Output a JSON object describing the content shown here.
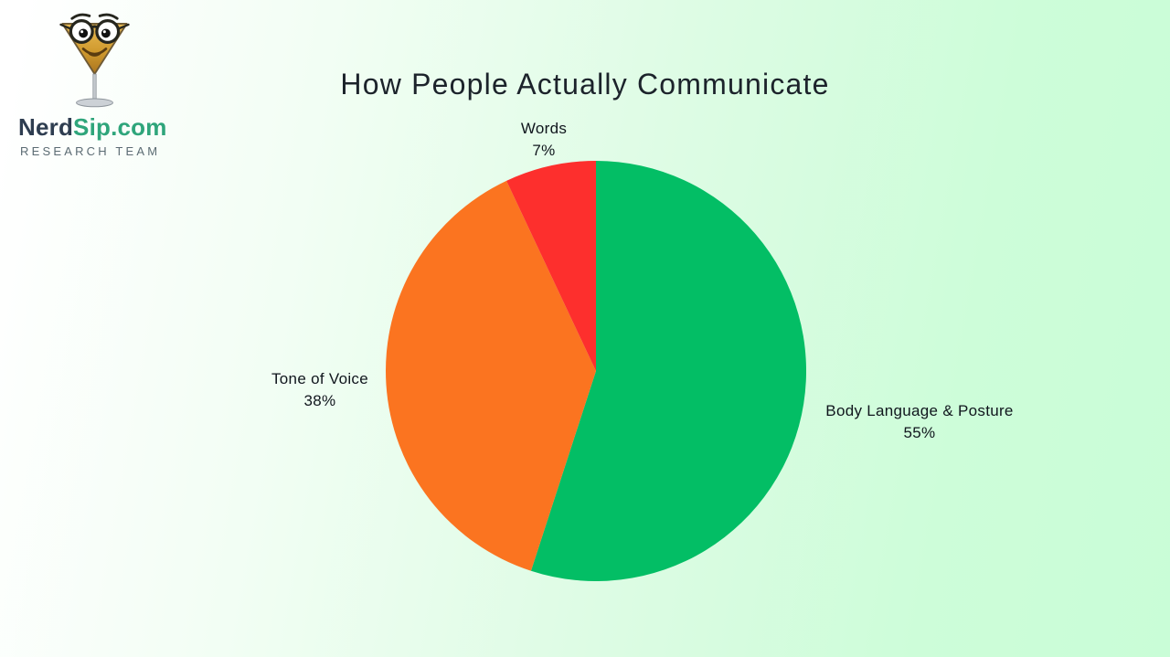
{
  "page": {
    "background_start": "#ffffff",
    "background_end": "#c9fdd7"
  },
  "logo": {
    "icon": "martini-glass-nerd-face-icon",
    "brand_primary": "Nerd",
    "brand_secondary": "Sip.com",
    "subtitle": "RESEARCH TEAM",
    "colors": {
      "brand_primary": "#2e3d50",
      "brand_secondary": "#2fa57b",
      "subtitle": "#5b6b73"
    }
  },
  "chart_data": {
    "type": "pie",
    "title": "How People Actually Communicate",
    "direction": "clockwise",
    "start_angle_deg": 0,
    "legend_position": "outside-labels",
    "categories": [
      "Body Language & Posture",
      "Tone of Voice",
      "Words"
    ],
    "values": [
      55,
      38,
      7
    ],
    "slices": [
      {
        "label": "Body Language & Posture",
        "value": 55,
        "percent_label": "55%",
        "color": "#03be65"
      },
      {
        "label": "Tone of Voice",
        "value": 38,
        "percent_label": "38%",
        "color": "#fb7420"
      },
      {
        "label": "Words",
        "value": 7,
        "percent_label": "7%",
        "color": "#fd2f2d"
      }
    ]
  }
}
